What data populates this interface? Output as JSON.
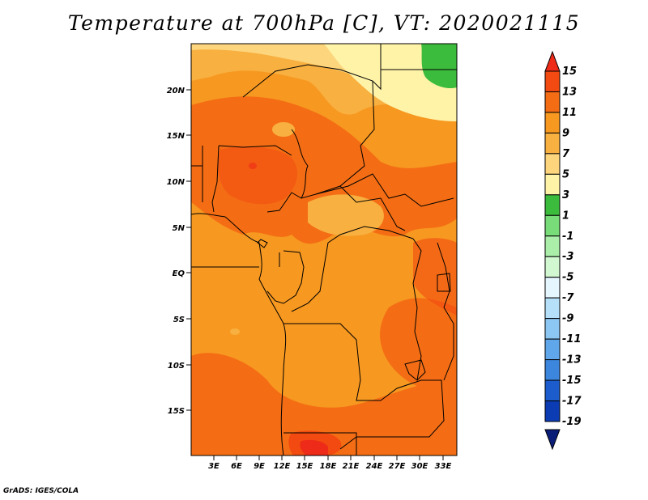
{
  "title": "Temperature at 700hPa [C], VT: 2020021115",
  "credit": "GrADS: IGES/COLA",
  "map": {
    "lat_ticks": [
      "20N",
      "15N",
      "10N",
      "5N",
      "EQ",
      "5S",
      "10S",
      "15S"
    ],
    "lon_ticks": [
      "3E",
      "6E",
      "9E",
      "12E",
      "15E",
      "18E",
      "21E",
      "24E",
      "27E",
      "30E",
      "33E"
    ]
  },
  "colorbar": {
    "labels": [
      "15",
      "13",
      "11",
      "9",
      "7",
      "5",
      "3",
      "1",
      "-1",
      "-3",
      "-5",
      "-7",
      "-9",
      "-11",
      "-13",
      "-15",
      "-17",
      "-19"
    ],
    "colors": [
      "#ee2a18",
      "#f24a10",
      "#f46d14",
      "#f79820",
      "#f8b040",
      "#fdd57c",
      "#fff3a8",
      "#3cbc3c",
      "#78dc78",
      "#aaeeaa",
      "#d2f8d2",
      "#e6f6fe",
      "#b6e0fa",
      "#8cc6f2",
      "#60a6ea",
      "#3c86de",
      "#1c5ccc",
      "#0c3cb4",
      "#0a1e78"
    ]
  }
}
